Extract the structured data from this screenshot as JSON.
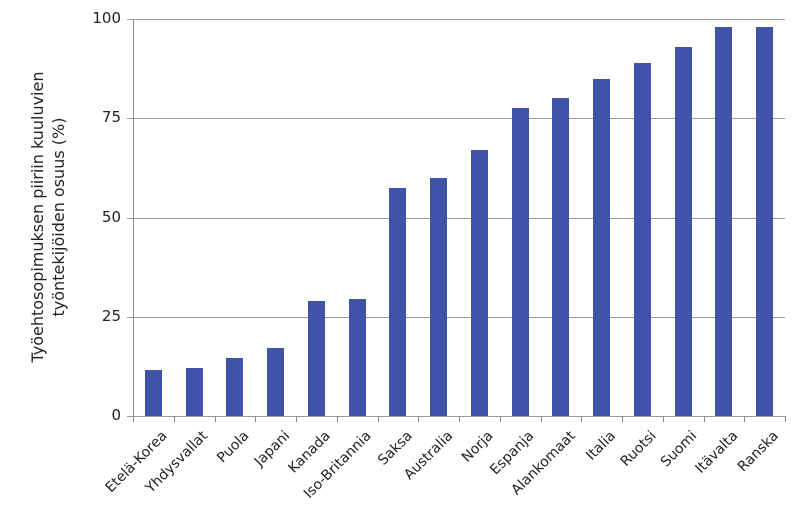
{
  "chart_data": {
    "type": "bar",
    "title": "",
    "xlabel": "",
    "ylabel": "Työehtosopimuksen piiriin kuuluvien työntekijöiden osuus (%)",
    "ylabel_lines": [
      "Työehtosopimuksen piiriin kuuluvien",
      "työntekijöiden osuus (%)"
    ],
    "ylim": [
      0,
      100
    ],
    "yticks": [
      0,
      25,
      50,
      75,
      100
    ],
    "grid": true,
    "legend": null,
    "bar_color": "#3f54a8",
    "categories": [
      "Etelä-Korea",
      "Yhdysvallat",
      "Puola",
      "Japani",
      "Kanada",
      "Iso-Britannia",
      "Saksa",
      "Australia",
      "Norja",
      "Espanja",
      "Alankomaat",
      "Italia",
      "Ruotsi",
      "Suomi",
      "Itävalta",
      "Ranska"
    ],
    "values": [
      11.7,
      12,
      14.7,
      17.2,
      29,
      29.5,
      57.5,
      60,
      67,
      77.5,
      80,
      85,
      89,
      93,
      98,
      98
    ]
  }
}
